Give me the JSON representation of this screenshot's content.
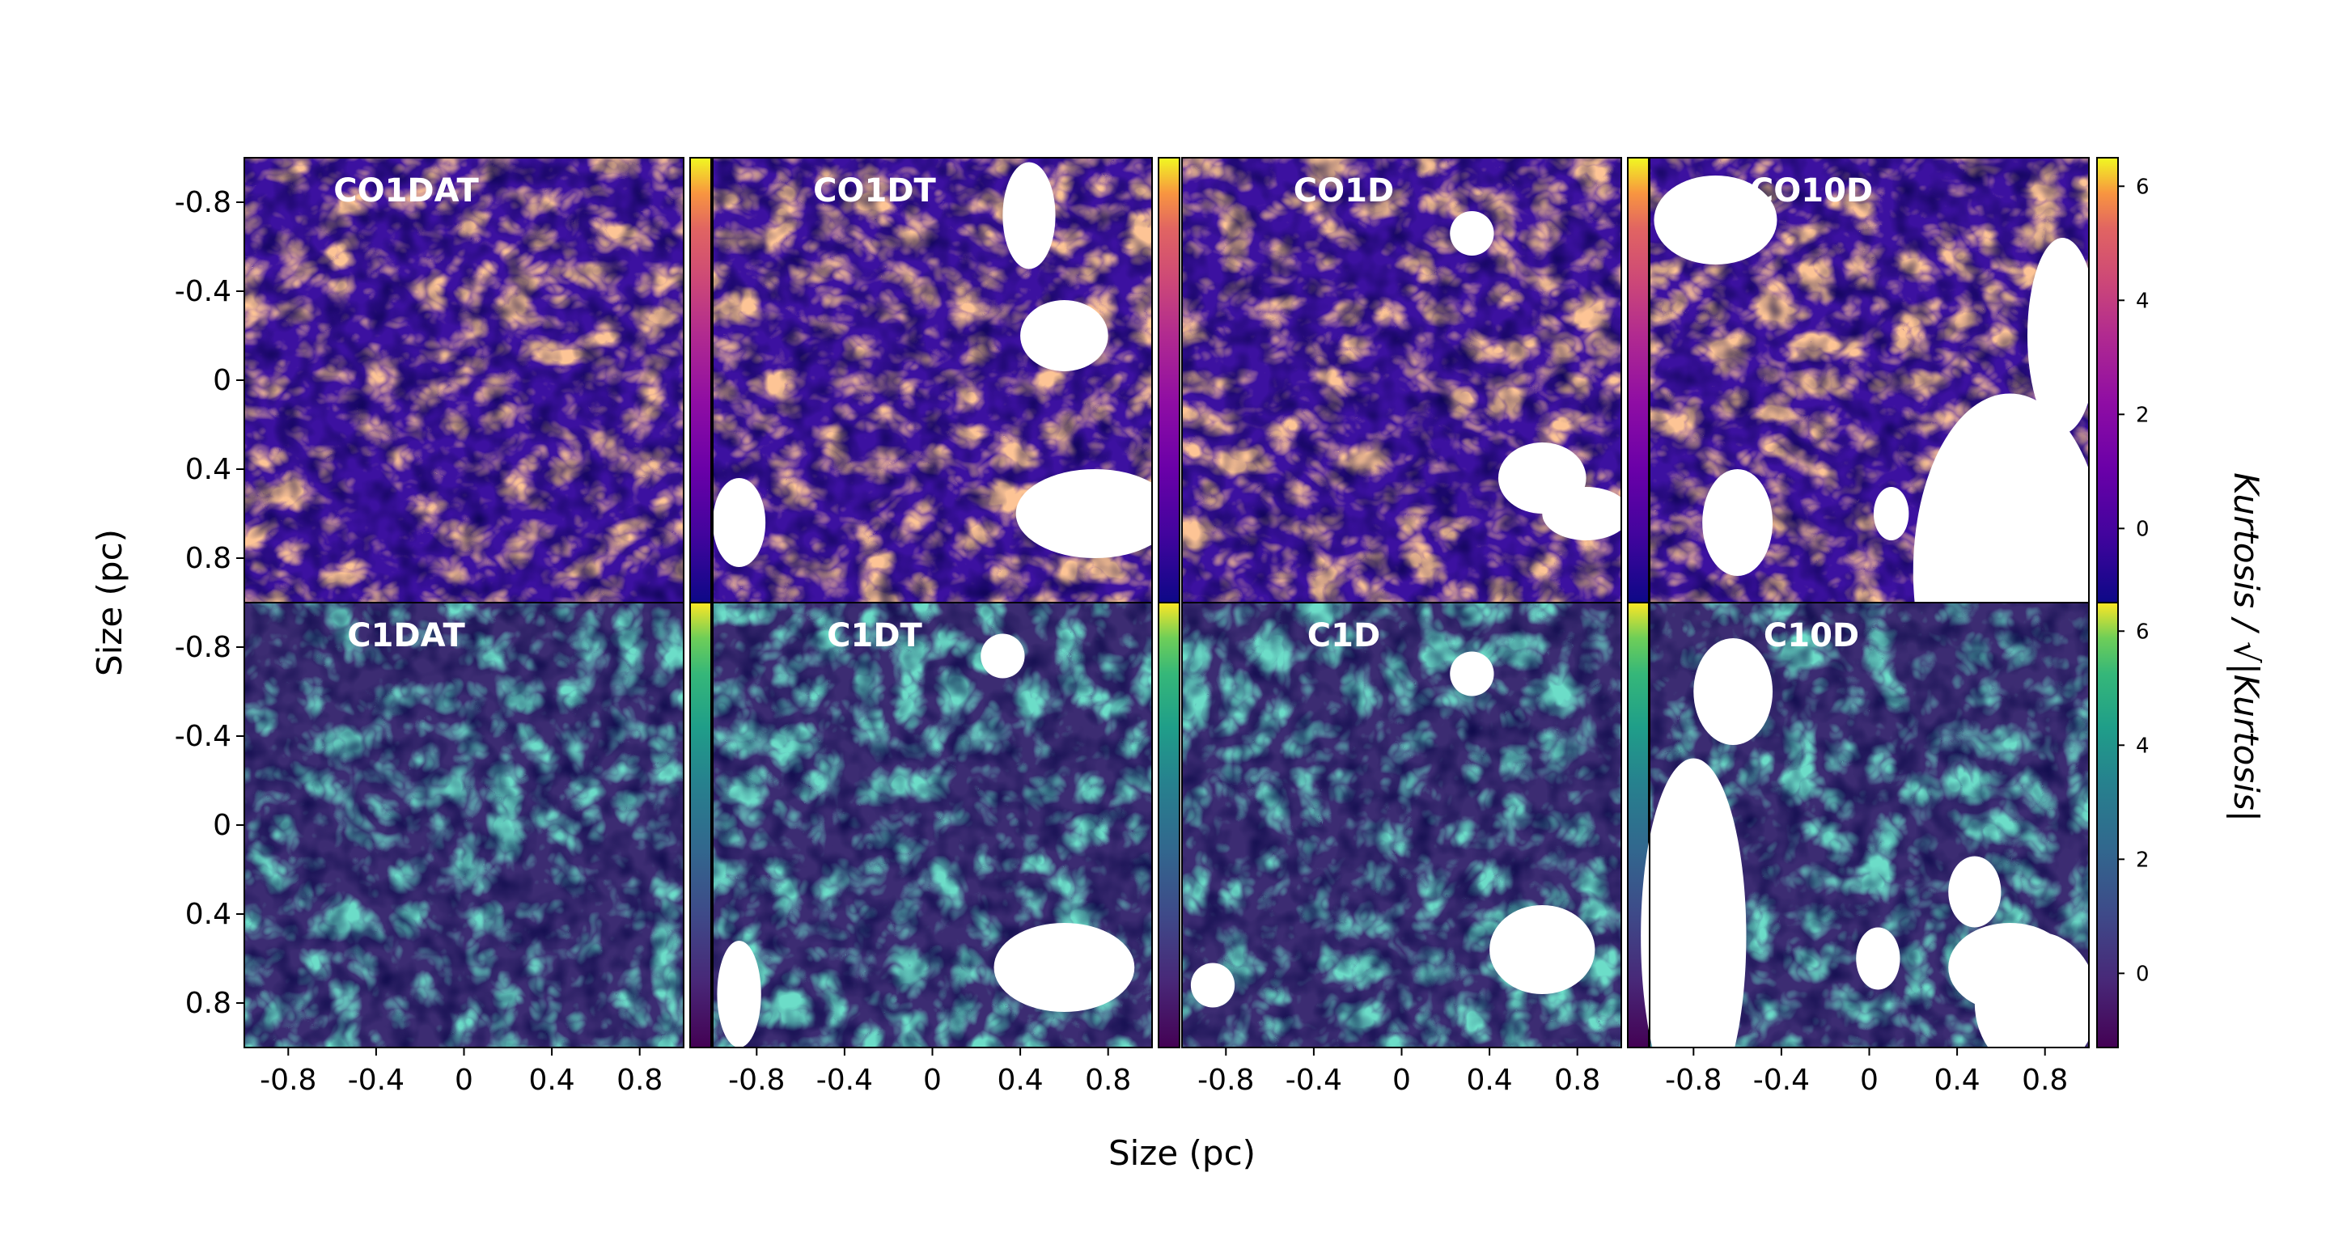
{
  "chart_data": {
    "type": "heatmap",
    "xlabel": "Size (pc)",
    "ylabel": "Size (pc)",
    "colorbar_label": "Kurtosis / √|Kurtosis|",
    "xlim": [
      -1,
      1
    ],
    "ylim": [
      -1,
      1
    ],
    "x_ticks": [
      "-0.8",
      "-0.4",
      "0",
      "0.4",
      "0.8"
    ],
    "y_ticks": [
      "-0.8",
      "-0.4",
      "0",
      "0.4",
      "0.8"
    ],
    "colorbar_range": [
      -1.3,
      6.5
    ],
    "colorbar_ticks": [
      "0",
      "2",
      "4",
      "6"
    ],
    "colormaps": {
      "top_row": "plasma",
      "bottom_row": "viridis"
    },
    "panels": [
      {
        "title": "CO1DAT",
        "row": 0,
        "col": 0,
        "cmap": "plasma"
      },
      {
        "title": "CO1DT",
        "row": 0,
        "col": 1,
        "cmap": "plasma"
      },
      {
        "title": "CO1D",
        "row": 0,
        "col": 2,
        "cmap": "plasma"
      },
      {
        "title": "CO10D",
        "row": 0,
        "col": 3,
        "cmap": "plasma"
      },
      {
        "title": "C1DAT",
        "row": 1,
        "col": 0,
        "cmap": "viridis"
      },
      {
        "title": "C1DT",
        "row": 1,
        "col": 1,
        "cmap": "viridis"
      },
      {
        "title": "C1D",
        "row": 1,
        "col": 2,
        "cmap": "viridis"
      },
      {
        "title": "C10D",
        "row": 1,
        "col": 3,
        "cmap": "viridis"
      }
    ]
  }
}
